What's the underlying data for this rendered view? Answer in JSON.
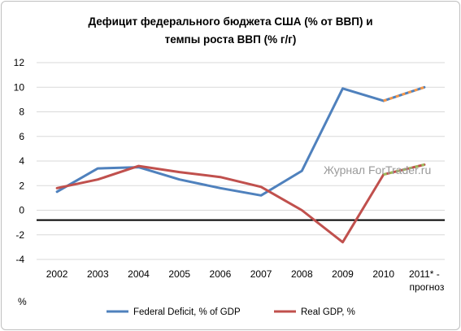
{
  "title_line1": "Дефицит федерального бюджета США (% от ВВП) и",
  "title_line2": "темпы роста ВВП (% г/г)",
  "unit_label": "%",
  "watermark": "Журнал ForTrader.ru",
  "colors": {
    "deficit": "#4f81bd",
    "deficit_forecast": "#f79646",
    "gdp": "#c0504d",
    "gdp_forecast": "#9bbb59",
    "gridline": "#d9d9d9",
    "reference_line": "#000000"
  },
  "chart_data": {
    "type": "line",
    "categories": [
      "2002",
      "2003",
      "2004",
      "2005",
      "2006",
      "2007",
      "2008",
      "2009",
      "2010",
      "2011* -"
    ],
    "category_sublabels": [
      "",
      "",
      "",
      "",
      "",
      "",
      "",
      "",
      "",
      "прогноз"
    ],
    "ylim": [
      -4,
      12
    ],
    "yticks": [
      12,
      10,
      8,
      6,
      4,
      2,
      0,
      -2,
      -4
    ],
    "grid": true,
    "reference_line_y": -0.8,
    "legend_position": "bottom",
    "forecast_from_index": 8,
    "series": [
      {
        "name": "Federal Deficit, % of GDP",
        "key": "deficit",
        "values": [
          1.5,
          3.4,
          3.5,
          2.5,
          1.8,
          1.2,
          3.2,
          9.9,
          8.9,
          10.0
        ]
      },
      {
        "name": "Real GDP, %",
        "key": "gdp",
        "values": [
          1.8,
          2.5,
          3.6,
          3.1,
          2.7,
          1.9,
          0.0,
          -2.6,
          2.9,
          3.7
        ]
      }
    ]
  }
}
